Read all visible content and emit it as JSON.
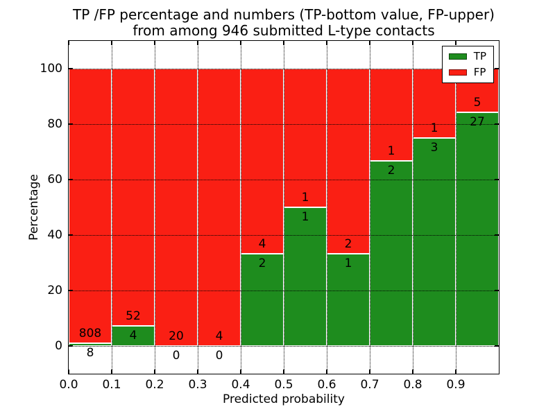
{
  "title": {
    "line1": "TP /FP percentage and numbers (TP-bottom value, FP-upper)",
    "line2": "from among 946 submitted L-type contacts"
  },
  "chart_data": {
    "type": "bar",
    "stacked": true,
    "title": "TP /FP percentage and numbers (TP-bottom value, FP-upper) from among 946 submitted L-type contacts",
    "xlabel": "Predicted probability",
    "ylabel": "Percentage",
    "total_contacts": 946,
    "xlim": [
      0.0,
      1.0
    ],
    "ylim": [
      -10,
      110
    ],
    "xticks": [
      "0.0",
      "0.1",
      "0.2",
      "0.3",
      "0.4",
      "0.5",
      "0.6",
      "0.7",
      "0.8",
      "0.9"
    ],
    "yticks": [
      0,
      20,
      40,
      60,
      80,
      100
    ],
    "grid": true,
    "grid_style": "dotted-black",
    "legend_position": "upper right",
    "bin_edges": [
      0.0,
      0.1,
      0.2,
      0.3,
      0.4,
      0.5,
      0.6,
      0.7,
      0.8,
      0.9,
      1.0
    ],
    "series": [
      {
        "name": "TP",
        "color": "#1e8c1e",
        "counts": [
          8,
          4,
          0,
          0,
          2,
          1,
          1,
          2,
          3,
          27
        ]
      },
      {
        "name": "FP",
        "color": "#fa1f14",
        "counts": [
          808,
          52,
          20,
          4,
          4,
          1,
          2,
          1,
          1,
          5
        ]
      }
    ],
    "tp_percent": [
      0.98,
      7.14,
      0.0,
      0.0,
      33.33,
      50.0,
      33.33,
      66.67,
      75.0,
      84.38
    ],
    "bar_total_percent": 100,
    "label_offset_percent": 3.5
  },
  "colors": {
    "tp": "#1e8c1e",
    "fp": "#fa1f14",
    "grid": "#000000",
    "background": "#ffffff",
    "bar_edge": "#ffffff"
  }
}
